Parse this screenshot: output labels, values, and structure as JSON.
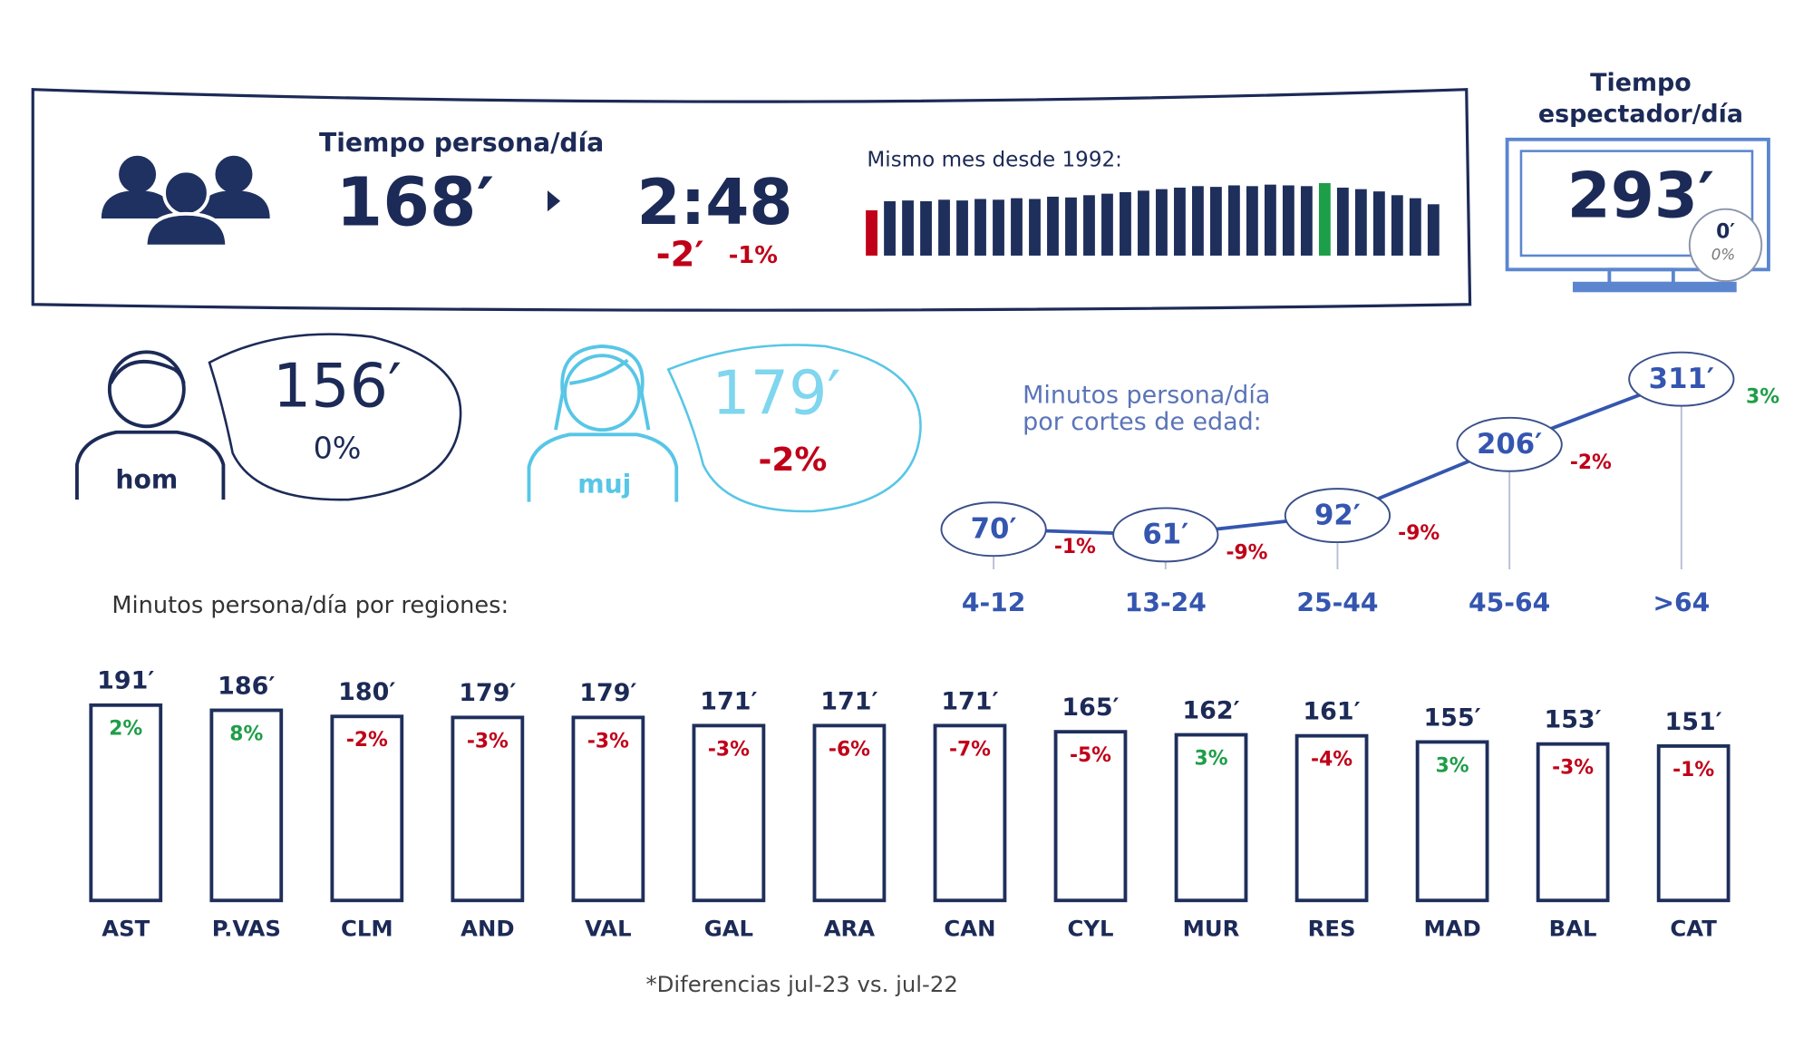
{
  "summary": {
    "title": "Tiempo persona/día",
    "minutes": "168′",
    "hours": "2:48",
    "diff_minutes": "-2′",
    "diff_percent": "-1%"
  },
  "spectator": {
    "title": [
      "Tiempo",
      "espectador/día"
    ],
    "minutes": "293′",
    "diff_minutes": "0′",
    "diff_percent": "0%"
  },
  "gender": [
    {
      "label": "hom",
      "minutes": "156′",
      "diff_percent": "0%"
    },
    {
      "label": "muj",
      "minutes": "179′",
      "diff_percent": "-2%"
    }
  ],
  "colors": {
    "negative": "#c00018",
    "positive": "#1d9e48"
  },
  "chart_data": [
    {
      "type": "spark",
      "title": "Mismo mes desde 1992:",
      "values": [
        160,
        172,
        173,
        172,
        174,
        173,
        175,
        174,
        176,
        175,
        178,
        177,
        180,
        182,
        184,
        186,
        188,
        190,
        192,
        191,
        193,
        192,
        194,
        193,
        192,
        196,
        190,
        188,
        185,
        180,
        176,
        168
      ],
      "color": "#1f2f5c",
      "min_color": "#c00018",
      "max_color": "#1d9e48",
      "ylim": [
        100,
        200
      ]
    },
    {
      "type": "line",
      "title": [
        "Minutos persona/día",
        "por cortes de edad:"
      ],
      "categories": [
        "4-12",
        "13-24",
        "25-44",
        "45-64",
        ">64"
      ],
      "values": [
        70,
        61,
        92,
        206,
        311
      ],
      "value_labels": [
        "70′",
        "61′",
        "92′",
        "206′",
        "311′"
      ],
      "diff_labels": [
        "-1%",
        "-9%",
        "-9%",
        "-2%",
        "3%"
      ],
      "color": "#3456b0",
      "ylim": [
        0,
        360
      ]
    },
    {
      "type": "bar",
      "title": "Minutos  persona/día por regiones:",
      "categories": [
        "AST",
        "P.VAS",
        "CLM",
        "AND",
        "VAL",
        "GAL",
        "ARA",
        "CAN",
        "CYL",
        "MUR",
        "RES",
        "MAD",
        "BAL",
        "CAT"
      ],
      "values": [
        191,
        186,
        180,
        179,
        179,
        171,
        171,
        171,
        165,
        162,
        161,
        155,
        153,
        151
      ],
      "value_labels": [
        "191′",
        "186′",
        "180′",
        "179′",
        "179′",
        "171′",
        "171′",
        "171′",
        "165′",
        "162′",
        "161′",
        "155′",
        "153′",
        "151′"
      ],
      "diff_labels": [
        "2%",
        "8%",
        "-2%",
        "-3%",
        "-3%",
        "-3%",
        "-6%",
        "-7%",
        "-5%",
        "3%",
        "-4%",
        "3%",
        "-3%",
        "-1%"
      ],
      "color": "#1f2f5c",
      "ylim": [
        0,
        200
      ]
    }
  ],
  "footnote": "*Diferencias jul-23 vs. jul-22"
}
